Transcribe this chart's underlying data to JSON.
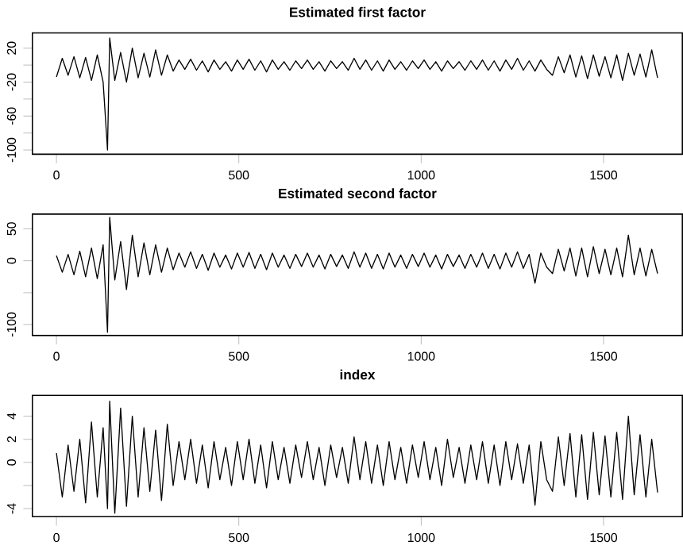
{
  "chart_data": [
    {
      "type": "line",
      "title": "Estimated first factor",
      "xlim": [
        -66,
        1716
      ],
      "ylim": [
        -105,
        38
      ],
      "xticks": [
        0,
        500,
        1000,
        1500
      ],
      "yticks": [
        {
          "value": -100,
          "label": "-100"
        },
        {
          "value": -80,
          "label": null
        },
        {
          "value": -60,
          "label": "-60"
        },
        {
          "value": -40,
          "label": null
        },
        {
          "value": -20,
          "label": "-20"
        },
        {
          "value": 0,
          "label": null
        },
        {
          "value": 20,
          "label": "20"
        }
      ],
      "x": [
        0,
        16,
        32,
        48,
        64,
        80,
        96,
        112,
        128,
        140,
        146,
        160,
        176,
        192,
        208,
        224,
        240,
        256,
        272,
        288,
        304,
        320,
        336,
        352,
        368,
        384,
        400,
        416,
        432,
        448,
        464,
        480,
        496,
        512,
        528,
        544,
        560,
        576,
        592,
        608,
        624,
        640,
        656,
        672,
        688,
        704,
        720,
        736,
        752,
        768,
        784,
        800,
        816,
        832,
        848,
        864,
        880,
        896,
        912,
        928,
        944,
        960,
        976,
        992,
        1008,
        1024,
        1040,
        1056,
        1072,
        1088,
        1104,
        1120,
        1136,
        1152,
        1168,
        1184,
        1200,
        1216,
        1232,
        1248,
        1264,
        1280,
        1296,
        1312,
        1328,
        1344,
        1360,
        1376,
        1392,
        1408,
        1424,
        1440,
        1456,
        1472,
        1488,
        1504,
        1520,
        1536,
        1552,
        1568,
        1584,
        1600,
        1616,
        1632,
        1648
      ],
      "series": [
        {
          "color": "#000000",
          "values": [
            -14,
            8,
            -12,
            10,
            -15,
            9,
            -18,
            12,
            -20,
            -100,
            32,
            -18,
            15,
            -20,
            20,
            -15,
            14,
            -14,
            18,
            -12,
            12,
            -7,
            6,
            -5,
            7,
            -6,
            5,
            -8,
            6,
            -5,
            4,
            -7,
            6,
            -5,
            7,
            -6,
            5,
            -8,
            6,
            -5,
            4,
            -6,
            5,
            -4,
            6,
            -5,
            4,
            -7,
            5,
            -4,
            4,
            -6,
            8,
            -5,
            6,
            -6,
            5,
            -7,
            6,
            -5,
            4,
            -6,
            5,
            -4,
            6,
            -5,
            4,
            -7,
            5,
            -4,
            4,
            -6,
            5,
            -5,
            6,
            -6,
            5,
            -7,
            6,
            -5,
            8,
            -6,
            5,
            -7,
            6,
            -5,
            -12,
            10,
            -9,
            12,
            -14,
            11,
            -16,
            12,
            -13,
            10,
            -15,
            12,
            -18,
            14,
            -12,
            13,
            -14,
            18,
            -15
          ]
        }
      ]
    },
    {
      "type": "line",
      "title": "Estimated second factor",
      "xlim": [
        -66,
        1716
      ],
      "ylim": [
        -117,
        73
      ],
      "xticks": [
        0,
        500,
        1000,
        1500
      ],
      "yticks": [
        {
          "value": -100,
          "label": "-100"
        },
        {
          "value": -50,
          "label": null
        },
        {
          "value": 0,
          "label": "0"
        },
        {
          "value": 50,
          "label": "50"
        }
      ],
      "x": [
        0,
        16,
        32,
        48,
        64,
        80,
        96,
        112,
        128,
        140,
        146,
        160,
        176,
        192,
        208,
        224,
        240,
        256,
        272,
        288,
        304,
        320,
        336,
        352,
        368,
        384,
        400,
        416,
        432,
        448,
        464,
        480,
        496,
        512,
        528,
        544,
        560,
        576,
        592,
        608,
        624,
        640,
        656,
        672,
        688,
        704,
        720,
        736,
        752,
        768,
        784,
        800,
        816,
        832,
        848,
        864,
        880,
        896,
        912,
        928,
        944,
        960,
        976,
        992,
        1008,
        1024,
        1040,
        1056,
        1072,
        1088,
        1104,
        1120,
        1136,
        1152,
        1168,
        1184,
        1200,
        1216,
        1232,
        1248,
        1264,
        1280,
        1296,
        1312,
        1328,
        1344,
        1360,
        1376,
        1392,
        1408,
        1424,
        1440,
        1456,
        1472,
        1488,
        1504,
        1520,
        1536,
        1552,
        1568,
        1584,
        1600,
        1616,
        1632,
        1648
      ],
      "series": [
        {
          "color": "#000000",
          "values": [
            8,
            -18,
            10,
            -22,
            15,
            -25,
            20,
            -28,
            25,
            -112,
            68,
            -30,
            30,
            -45,
            40,
            -25,
            28,
            -22,
            25,
            -18,
            20,
            -14,
            12,
            -10,
            14,
            -12,
            10,
            -15,
            12,
            -10,
            9,
            -13,
            12,
            -10,
            13,
            -12,
            10,
            -14,
            12,
            -10,
            9,
            -12,
            10,
            -9,
            12,
            -10,
            9,
            -13,
            10,
            -9,
            9,
            -12,
            14,
            -10,
            12,
            -12,
            10,
            -13,
            12,
            -10,
            9,
            -12,
            10,
            -9,
            12,
            -10,
            9,
            -13,
            10,
            -9,
            9,
            -12,
            10,
            -10,
            12,
            -12,
            10,
            -13,
            12,
            -10,
            14,
            -12,
            10,
            -35,
            12,
            -10,
            -20,
            18,
            -16,
            20,
            -24,
            20,
            -25,
            22,
            -20,
            18,
            -22,
            20,
            -25,
            40,
            -22,
            20,
            -24,
            18,
            -20
          ]
        }
      ]
    },
    {
      "type": "line",
      "title": "index",
      "xlim": [
        -66,
        1716
      ],
      "ylim": [
        -4.7,
        5.8
      ],
      "xticks": [
        0,
        500,
        1000,
        1500
      ],
      "yticks": [
        {
          "value": -4,
          "label": "-4"
        },
        {
          "value": -2,
          "label": null
        },
        {
          "value": 0,
          "label": "0"
        },
        {
          "value": 2,
          "label": "2"
        },
        {
          "value": 4,
          "label": "4"
        }
      ],
      "x": [
        0,
        16,
        32,
        48,
        64,
        80,
        96,
        112,
        128,
        140,
        146,
        160,
        176,
        192,
        208,
        224,
        240,
        256,
        272,
        288,
        304,
        320,
        336,
        352,
        368,
        384,
        400,
        416,
        432,
        448,
        464,
        480,
        496,
        512,
        528,
        544,
        560,
        576,
        592,
        608,
        624,
        640,
        656,
        672,
        688,
        704,
        720,
        736,
        752,
        768,
        784,
        800,
        816,
        832,
        848,
        864,
        880,
        896,
        912,
        928,
        944,
        960,
        976,
        992,
        1008,
        1024,
        1040,
        1056,
        1072,
        1088,
        1104,
        1120,
        1136,
        1152,
        1168,
        1184,
        1200,
        1216,
        1232,
        1248,
        1264,
        1280,
        1296,
        1312,
        1328,
        1344,
        1360,
        1376,
        1392,
        1408,
        1424,
        1440,
        1456,
        1472,
        1488,
        1504,
        1520,
        1536,
        1552,
        1568,
        1584,
        1600,
        1616,
        1632,
        1648
      ],
      "series": [
        {
          "color": "#000000",
          "values": [
            0.8,
            -3,
            1.5,
            -2.5,
            2,
            -3.5,
            3.5,
            -3,
            3,
            -4,
            5.3,
            -4.4,
            4.7,
            -3.8,
            4,
            -3,
            3,
            -2.5,
            2.8,
            -3.3,
            3.3,
            -2,
            1.8,
            -1.5,
            2,
            -1.8,
            1.5,
            -2.2,
            1.8,
            -1.5,
            1.3,
            -2,
            1.8,
            -1.5,
            2,
            -1.8,
            1.5,
            -2.2,
            1.8,
            -1.5,
            1.3,
            -1.8,
            1.5,
            -1.3,
            1.8,
            -1.5,
            1.3,
            -2,
            1.5,
            -1.3,
            1.3,
            -1.8,
            2.2,
            -1.5,
            1.8,
            -1.8,
            1.5,
            -2,
            1.8,
            -1.5,
            1.3,
            -1.8,
            1.5,
            -1.3,
            1.8,
            -1.5,
            1.3,
            -2,
            2,
            -1.3,
            1.3,
            -1.8,
            1.5,
            -1.5,
            1.8,
            -1.8,
            1.5,
            -2,
            1.8,
            -1.5,
            1.6,
            -1.8,
            1.5,
            -3.7,
            1.8,
            -1.5,
            -2.5,
            2.2,
            -2,
            2.5,
            -3,
            2.4,
            -3.2,
            2.6,
            -2.8,
            2.3,
            -3,
            2.6,
            -3.2,
            4,
            -2.8,
            2.4,
            -3,
            2,
            -2.6
          ]
        }
      ]
    }
  ]
}
